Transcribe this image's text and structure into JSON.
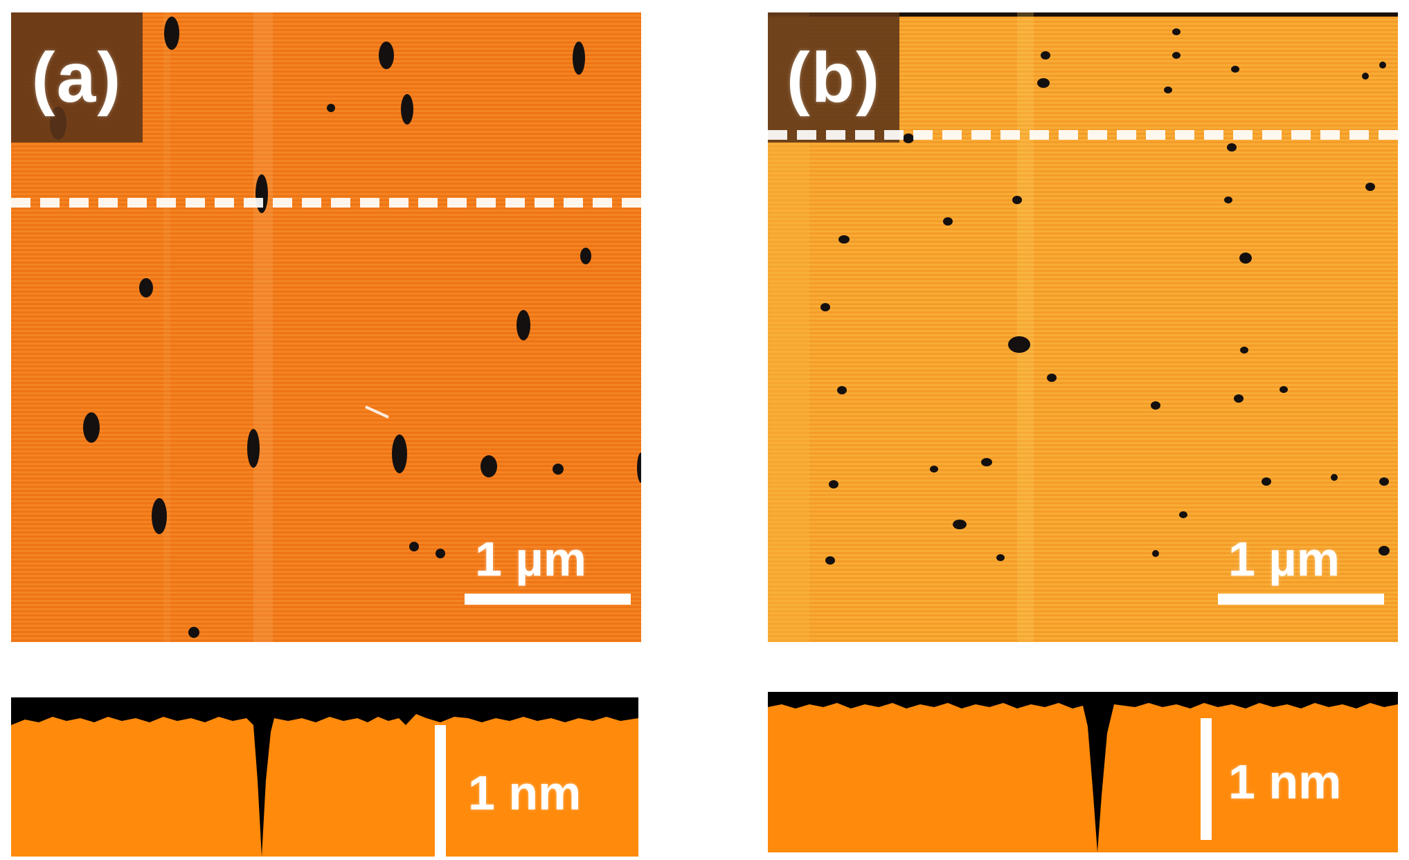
{
  "figure": {
    "panels": [
      {
        "id": "a",
        "label": "(a)",
        "image_scalebar": "1 µm",
        "profile_scalebar": "1 nm",
        "colors": {
          "surface": "#f0781a",
          "pit": "#141010",
          "stripe": "#f8a84a"
        }
      },
      {
        "id": "b",
        "label": "(b)",
        "image_scalebar": "1 µm",
        "profile_scalebar": "1 nm",
        "colors": {
          "surface": "#f6a02a",
          "pit": "#141010",
          "stripe": "#fbbf4d"
        }
      }
    ],
    "profile_colors": {
      "fill": "#ff8a0c",
      "background": "#000000"
    },
    "scan_line_color": "#ffffff"
  }
}
